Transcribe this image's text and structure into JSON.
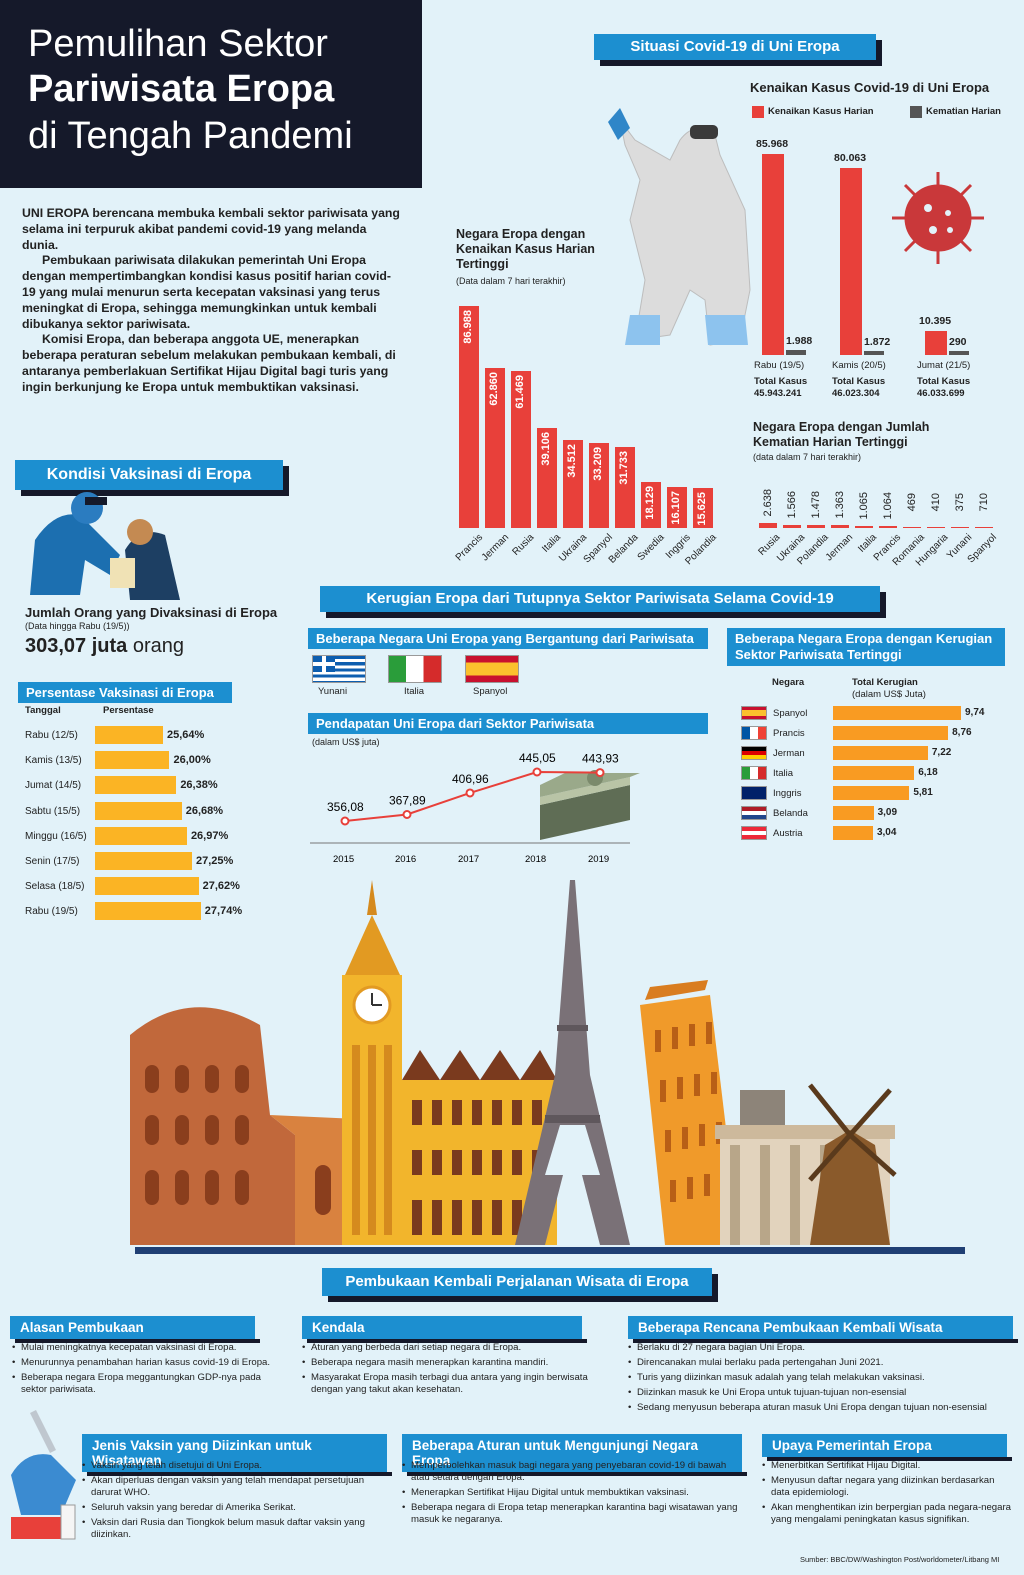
{
  "title": {
    "line1": "Pemulihan Sektor",
    "line2": "Pariwisata Eropa",
    "line3": "di Tengah Pandemi"
  },
  "intro": [
    "UNI EROPA berencana membuka kembali sektor pariwisata yang selama ini terpuruk akibat pandemi covid-19 yang melanda dunia.",
    "Pembukaan pariwisata dilakukan pemerintah Uni Eropa dengan mempertimbangkan kondisi kasus positif harian covid-19 yang mulai menurun serta kecepatan vaksinasi yang terus meningkat di Eropa, sehingga memungkinkan untuk kembali dibukanya sektor pariwisata.",
    "Komisi Eropa, dan beberapa anggota UE, menerapkan beberapa peraturan sebelum melakukan pembukaan kembali, di antaranya pemberlakuan Sertifikat Hijau Digital bagi turis yang ingin berkunjung ke Eropa untuk membuktikan vaksinasi."
  ],
  "covid": {
    "banner": "Situasi Covid-19 di Uni Eropa",
    "daily": {
      "title": "Kenaikan Kasus Covid-19 di Uni Eropa",
      "legend_cases": "Kenaikan Kasus Harian",
      "legend_deaths": "Kematian Harian",
      "days": [
        {
          "label": "Rabu (19/5)",
          "cases": "85.968",
          "deaths": "1.988",
          "total_label": "Total Kasus",
          "total": "45.943.241"
        },
        {
          "label": "Kamis (20/5)",
          "cases": "80.063",
          "deaths": "1.872",
          "total_label": "Total Kasus",
          "total": "46.023.304"
        },
        {
          "label": "Jumat (21/5)",
          "cases": "10.395",
          "deaths": "290",
          "total_label": "Total Kasus",
          "total": "46.033.699"
        }
      ]
    },
    "highest_cases": {
      "title": "Negara Eropa dengan Kenaikan Kasus Harian Tertinggi",
      "note": "(Data dalam 7 hari terakhir)",
      "items": [
        {
          "country": "Prancis",
          "value": "86.988"
        },
        {
          "country": "Jerman",
          "value": "62.860"
        },
        {
          "country": "Rusia",
          "value": "61.469"
        },
        {
          "country": "Italia",
          "value": "39.106"
        },
        {
          "country": "Ukraina",
          "value": "34.512"
        },
        {
          "country": "Spanyol",
          "value": "33.209"
        },
        {
          "country": "Belanda",
          "value": "31.733"
        },
        {
          "country": "Swedia",
          "value": "18.129"
        },
        {
          "country": "Inggris",
          "value": "16.107"
        },
        {
          "country": "Polandia",
          "value": "15.625"
        }
      ]
    },
    "highest_deaths": {
      "title": "Negara Eropa dengan Jumlah Kematian Harian Tertinggi",
      "note": "(data dalam 7 hari terakhir)",
      "items": [
        {
          "country": "Rusia",
          "value": "2.638"
        },
        {
          "country": "Ukraina",
          "value": "1.566"
        },
        {
          "country": "Polandia",
          "value": "1.478"
        },
        {
          "country": "Jerman",
          "value": "1.363"
        },
        {
          "country": "Italia",
          "value": "1.065"
        },
        {
          "country": "Prancis",
          "value": "1.064"
        },
        {
          "country": "Romania",
          "value": "469"
        },
        {
          "country": "Hungaria",
          "value": "410"
        },
        {
          "country": "Yunani",
          "value": "375"
        },
        {
          "country": "Spanyol",
          "value": "710"
        }
      ]
    }
  },
  "vaccine": {
    "banner": "Kondisi Vaksinasi di Eropa",
    "count_title": "Jumlah Orang yang Divaksinasi di Eropa",
    "count_note": "(Data hingga Rabu (19/5))",
    "count_value": "303,07 juta",
    "count_unit": "orang",
    "pct_title": "Persentase Vaksinasi di Eropa",
    "col_date": "Tanggal",
    "col_pct": "Persentase",
    "rows": [
      {
        "date": "Rabu (12/5)",
        "pct": "25,64%"
      },
      {
        "date": "Kamis (13/5)",
        "pct": "26,00%"
      },
      {
        "date": "Jumat (14/5)",
        "pct": "26,38%"
      },
      {
        "date": "Sabtu (15/5)",
        "pct": "26,68%"
      },
      {
        "date": "Minggu (16/5)",
        "pct": "26,97%"
      },
      {
        "date": "Senin (17/5)",
        "pct": "27,25%"
      },
      {
        "date": "Selasa (18/5)",
        "pct": "27,62%"
      },
      {
        "date": "Rabu (19/5)",
        "pct": "27,74%"
      }
    ]
  },
  "losses": {
    "banner": "Kerugian Eropa dari Tutupnya Sektor Pariwisata Selama Covid-19",
    "dependent_title": "Beberapa Negara Uni Eropa yang Bergantung dari Pariwisata",
    "dependent": [
      "Yunani",
      "Italia",
      "Spanyol"
    ],
    "revenue_title": "Pendapatan Uni Eropa dari Sektor Pariwisata",
    "revenue_note": "(dalam US$ juta)",
    "revenue": [
      {
        "year": "2015",
        "value": "356,08"
      },
      {
        "year": "2016",
        "value": "367,89"
      },
      {
        "year": "2017",
        "value": "406,96"
      },
      {
        "year": "2018",
        "value": "445,05"
      },
      {
        "year": "2019",
        "value": "443,93"
      }
    ],
    "loss_title": "Beberapa Negara Eropa dengan Kerugian Sektor Pariwisata Tertinggi",
    "col_country": "Negara",
    "col_total": "Total Kerugian",
    "col_total_unit": "(dalam US$ Juta)",
    "loss": [
      {
        "country": "Spanyol",
        "value": "9,74"
      },
      {
        "country": "Prancis",
        "value": "8,76"
      },
      {
        "country": "Jerman",
        "value": "7,22"
      },
      {
        "country": "Italia",
        "value": "6,18"
      },
      {
        "country": "Inggris",
        "value": "5,81"
      },
      {
        "country": "Belanda",
        "value": "3,09"
      },
      {
        "country": "Austria",
        "value": "3,04"
      }
    ]
  },
  "reopen": {
    "banner": "Pembukaan Kembali Perjalanan Wisata di Eropa",
    "reasons": {
      "title": "Alasan Pembukaan",
      "items": [
        "Mulai meningkatnya kecepatan vaksinasi di Eropa.",
        "Menurunnya penambahan harian kasus covid-19 di Eropa.",
        "Beberapa negara Eropa meggantungkan GDP-nya pada sektor pariwisata."
      ]
    },
    "obstacles": {
      "title": "Kendala",
      "items": [
        "Aturan yang berbeda dari setiap negara di Eropa.",
        "Beberapa negara masih menerapkan karantina mandiri.",
        "Masyarakat Eropa masih terbagi dua antara yang ingin berwisata dengan yang takut akan kesehatan."
      ]
    },
    "plans": {
      "title": "Beberapa Rencana Pembukaan Kembali Wisata",
      "items": [
        "Berlaku di 27 negara bagian Uni Eropa.",
        "Direncanakan mulai berlaku pada pertengahan Juni 2021.",
        "Turis yang diizinkan masuk adalah yang telah melakukan vaksinasi.",
        "Diizinkan masuk ke Uni Eropa untuk tujuan-tujuan non-esensial",
        "Sedang menyusun beberapa aturan masuk Uni Eropa dengan tujuan non-esensial"
      ]
    },
    "vaccines": {
      "title": "Jenis Vaksin yang Diizinkan untuk Wisatawan",
      "items": [
        "Vaksin yang telah disetujui di Uni Eropa.",
        "Akan diperluas dengan vaksin yang telah mendapat persetujuan darurat WHO.",
        "Seluruh vaksin yang beredar di Amerika Serikat.",
        "Vaksin dari Rusia dan Tiongkok belum masuk daftar vaksin yang diizinkan."
      ]
    },
    "rules": {
      "title": "Beberapa Aturan untuk Mengunjungi Negara Eropa",
      "items": [
        "Memperbolehkan masuk bagi negara yang penyebaran covid-19 di bawah atau setara dengan Eropa.",
        "Menerapkan Sertifikat Hijau Digital untuk membuktikan vaksinasi.",
        "Beberapa negara di Eropa tetap menerapkan karantina bagi wisatawan yang masuk ke negaranya."
      ]
    },
    "government": {
      "title": "Upaya Pemerintah Eropa",
      "items": [
        "Menerbitkan Sertifikat Hijau Digital.",
        "Menyusun daftar negara yang diizinkan berdasarkan data epidemiologi.",
        "Akan menghentikan izin berpergian pada negara-negara yang mengalami peningkatan kasus signifikan."
      ]
    }
  },
  "source": "Sumber: BBC/DW/Washington Post/worldometer/Litbang MI",
  "colors": {
    "red": "#e8403a",
    "blue": "#1c8fd0",
    "navy": "#15192a",
    "orange": "#fbb424",
    "bg": "#e2f2f9"
  }
}
